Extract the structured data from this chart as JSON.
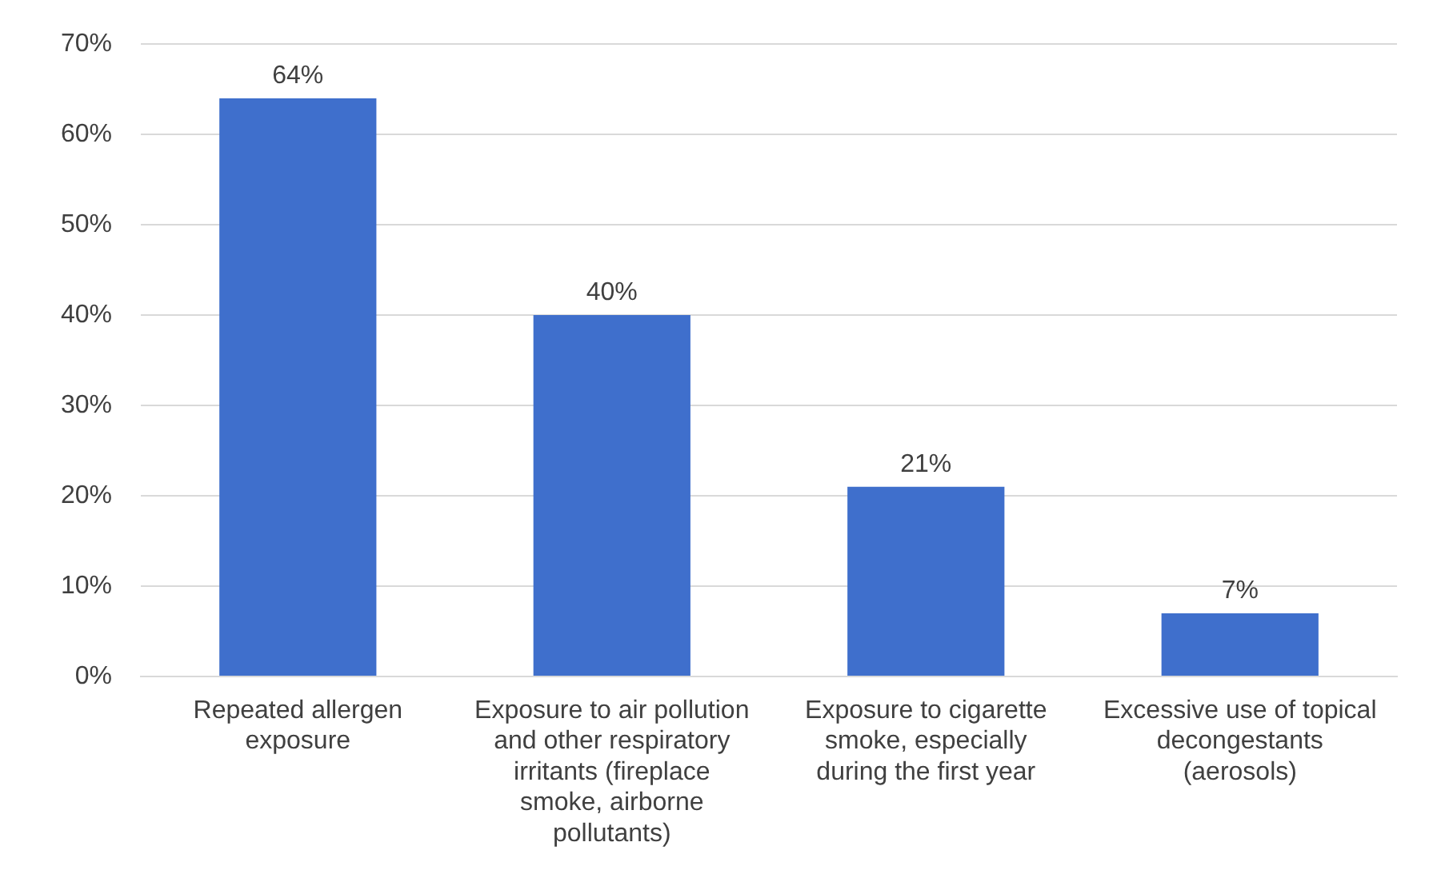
{
  "chart_data": {
    "type": "bar",
    "categories": [
      "Repeated allergen exposure",
      "Exposure to air pollution and other respiratory irritants (fireplace smoke, airborne pollutants)",
      "Exposure to cigarette smoke, especially during the first year",
      "Excessive use of topical decongestants (aerosols)"
    ],
    "values": [
      64,
      40,
      21,
      7
    ],
    "color": "#3f6fcc",
    "value_labels": [
      "64%",
      "40%",
      "21%",
      "7%"
    ],
    "ylim": [
      0,
      70
    ],
    "yticks": [
      {
        "value": 0,
        "label": "0%"
      },
      {
        "value": 10,
        "label": "10%"
      },
      {
        "value": 20,
        "label": "20%"
      },
      {
        "value": 30,
        "label": "30%"
      },
      {
        "value": 40,
        "label": "40%"
      },
      {
        "value": 50,
        "label": "50%"
      },
      {
        "value": 60,
        "label": "60%"
      },
      {
        "value": 70,
        "label": "70%"
      }
    ],
    "grid": "y",
    "legend": false
  }
}
